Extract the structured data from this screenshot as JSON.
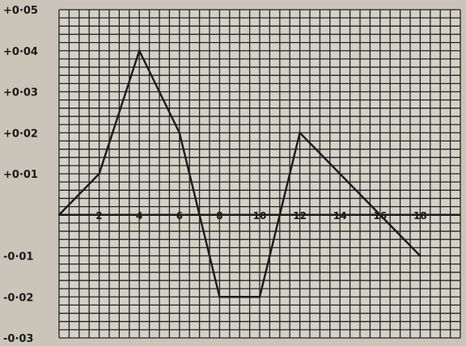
{
  "chart_data": {
    "type": "line",
    "title": "",
    "xlabel": "",
    "ylabel": "",
    "xlim": [
      0,
      20
    ],
    "ylim": [
      -0.03,
      0.05
    ],
    "grid": true,
    "x_tick_labels": [
      "2",
      "4",
      "6",
      "8",
      "10",
      "12",
      "14",
      "16",
      "18"
    ],
    "y_tick_labels": [
      "+0·05",
      "+0·04",
      "+0·03",
      "+0·02",
      "+0·01",
      "-0·01",
      "-0·02",
      "-0·03"
    ],
    "series": [
      {
        "x": [
          0,
          2,
          4,
          6,
          8,
          10,
          12,
          16,
          18
        ],
        "y": [
          0,
          0.01,
          0.04,
          0.02,
          -0.02,
          -0.02,
          0.02,
          0,
          -0.01
        ]
      }
    ],
    "colors": {
      "background": "#c9c5b9",
      "plot_background": "#d4d1c6",
      "grid": "#222222",
      "line": "#1a1a1a",
      "text": "#1a1a1a"
    }
  }
}
